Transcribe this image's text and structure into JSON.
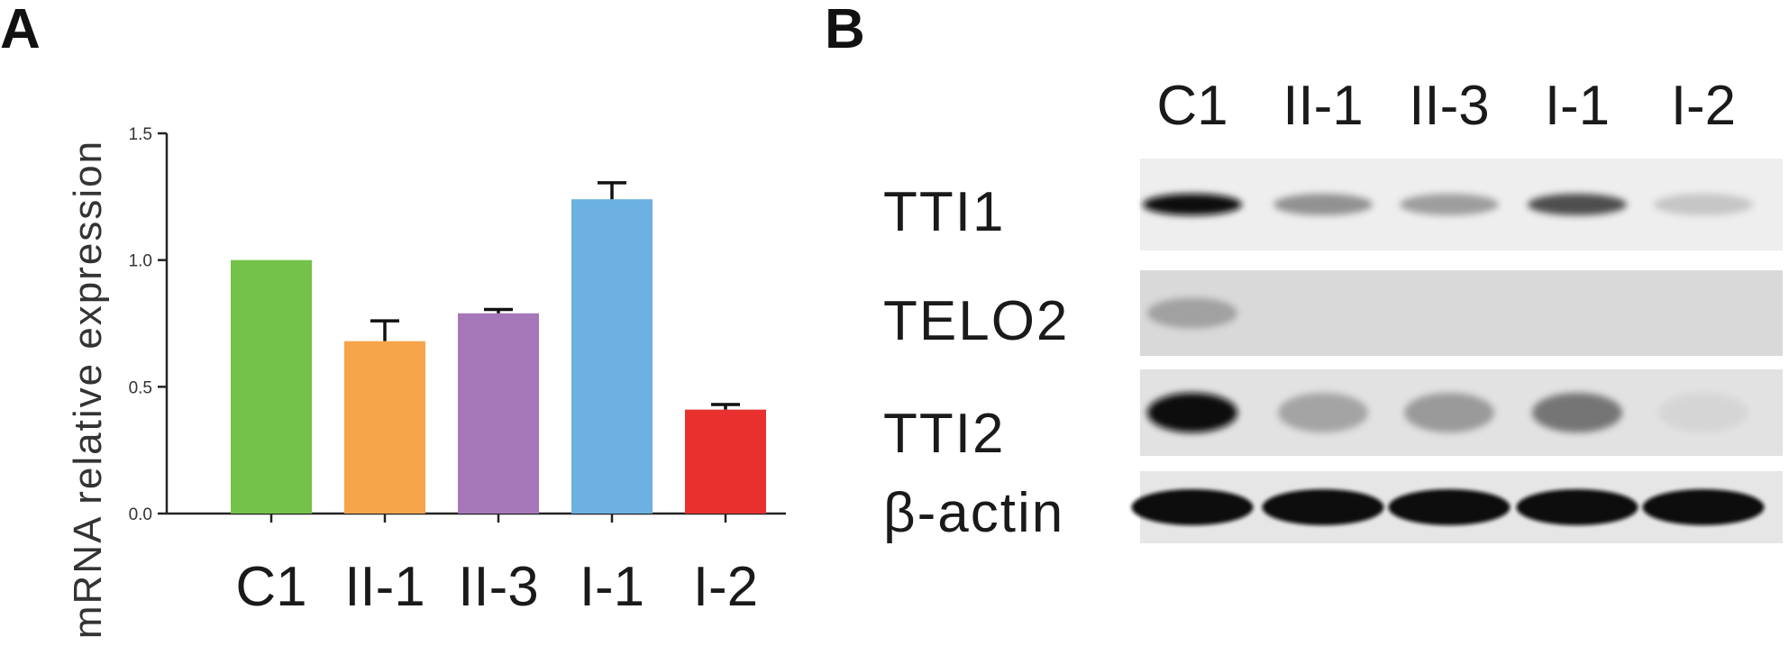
{
  "panels": {
    "a_label": "A",
    "b_label": "B"
  },
  "colors": {
    "bar_c1": "#74c24a",
    "bar_ii1": "#f6a54a",
    "bar_ii3": "#a677b8",
    "bar_i1": "#6cb1e2",
    "bar_i2": "#ea302e",
    "axis": "#222222"
  },
  "chart_data": {
    "type": "bar",
    "title": "",
    "xlabel": "",
    "ylabel": "mRNA relative expression",
    "categories": [
      "C1",
      "II-1",
      "II-3",
      "I-1",
      "I-2"
    ],
    "values": [
      1.0,
      0.68,
      0.79,
      1.24,
      0.41
    ],
    "errors": [
      0.0,
      0.08,
      0.015,
      0.065,
      0.02
    ],
    "ylim": [
      0.0,
      1.5
    ],
    "yticks": [
      "0.0",
      "0.5",
      "1.0",
      "1.5"
    ],
    "ytick_values": [
      0.0,
      0.5,
      1.0,
      1.5
    ],
    "grid": false,
    "legend": "none"
  },
  "blot": {
    "lanes": [
      "C1",
      "II-1",
      "II-3",
      "I-1",
      "I-2"
    ],
    "rows": [
      {
        "label": "TTI1",
        "intensities": [
          1.0,
          0.55,
          0.5,
          0.8,
          0.3
        ],
        "background": "#eeeeee"
      },
      {
        "label": "TELO2",
        "intensities": [
          0.45,
          0.0,
          0.0,
          0.0,
          0.0
        ],
        "background": "#d9d9d9"
      },
      {
        "label": "TTI2",
        "intensities": [
          1.0,
          0.45,
          0.5,
          0.65,
          0.15
        ],
        "background": "#e2e2e2"
      },
      {
        "label": "β-actin",
        "intensities": [
          1.0,
          1.0,
          1.0,
          1.0,
          1.0
        ],
        "background": "#e6e6e6"
      }
    ]
  }
}
